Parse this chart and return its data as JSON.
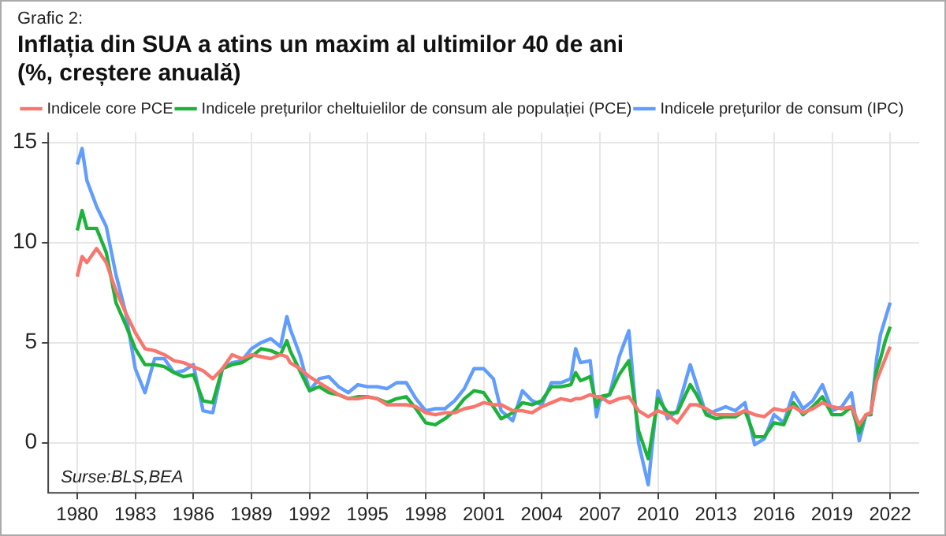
{
  "chart_data": {
    "type": "line",
    "subtitle": "Grafic 2:",
    "title": "Inflația din SUA a atins un maxim al ultimilor 40 de ani\n(%, creștere anuală)",
    "x": [
      1980.0,
      1980.25,
      1980.5,
      1981.0,
      1981.5,
      1982.0,
      1982.5,
      1983.0,
      1983.5,
      1984.0,
      1984.5,
      1985.0,
      1985.5,
      1986.0,
      1986.5,
      1987.0,
      1987.5,
      1988.0,
      1988.5,
      1989.0,
      1989.5,
      1990.0,
      1990.5,
      1990.83,
      1991.0,
      1991.5,
      1992.0,
      1992.5,
      1993.0,
      1993.5,
      1994.0,
      1994.5,
      1995.0,
      1995.5,
      1996.0,
      1996.5,
      1997.0,
      1997.5,
      1998.0,
      1998.5,
      1999.0,
      1999.5,
      2000.0,
      2000.5,
      2001.0,
      2001.5,
      2001.9,
      2002.5,
      2003.0,
      2003.5,
      2004.0,
      2004.5,
      2005.0,
      2005.5,
      2005.75,
      2006.0,
      2006.5,
      2006.83,
      2007.0,
      2007.5,
      2008.0,
      2008.5,
      2009.0,
      2009.5,
      2010.0,
      2010.5,
      2011.0,
      2011.67,
      2012.0,
      2012.5,
      2013.0,
      2013.5,
      2014.0,
      2014.5,
      2015.0,
      2015.5,
      2016.0,
      2016.5,
      2017.0,
      2017.5,
      2018.0,
      2018.5,
      2019.0,
      2019.5,
      2020.0,
      2020.4,
      2020.75,
      2021.0,
      2021.3,
      2021.5,
      2021.75,
      2022.0
    ],
    "series": [
      {
        "name": "Indicele core PCE",
        "color": "#f8766d",
        "values": [
          8.3,
          9.3,
          9.0,
          9.7,
          9.0,
          7.6,
          6.5,
          5.5,
          4.7,
          4.6,
          4.4,
          4.1,
          4.0,
          3.8,
          3.6,
          3.2,
          3.7,
          4.4,
          4.2,
          4.4,
          4.3,
          4.2,
          4.4,
          4.3,
          4.0,
          3.7,
          3.3,
          3.0,
          2.7,
          2.4,
          2.2,
          2.2,
          2.3,
          2.2,
          1.9,
          1.9,
          1.9,
          1.8,
          1.5,
          1.4,
          1.5,
          1.5,
          1.7,
          1.8,
          2.0,
          1.9,
          1.9,
          1.6,
          1.6,
          1.5,
          1.8,
          2.0,
          2.2,
          2.1,
          2.2,
          2.2,
          2.4,
          2.3,
          2.3,
          2.0,
          2.2,
          2.3,
          1.6,
          1.3,
          1.6,
          1.4,
          1.0,
          1.9,
          1.9,
          1.7,
          1.4,
          1.4,
          1.4,
          1.6,
          1.4,
          1.3,
          1.7,
          1.6,
          1.8,
          1.5,
          1.7,
          2.0,
          1.8,
          1.7,
          1.8,
          0.9,
          1.4,
          1.5,
          3.1,
          3.6,
          4.2,
          4.8
        ]
      },
      {
        "name": "Indicele prețurilor cheltuielilor de consum ale populației (PCE)",
        "color": "#1db33b",
        "values": [
          10.6,
          11.6,
          10.7,
          10.7,
          9.5,
          7.0,
          5.9,
          4.7,
          3.9,
          3.9,
          3.8,
          3.5,
          3.3,
          3.4,
          2.1,
          2.0,
          3.7,
          3.9,
          4.0,
          4.3,
          4.7,
          4.6,
          4.4,
          5.1,
          4.6,
          3.6,
          2.6,
          2.8,
          2.5,
          2.4,
          2.2,
          2.3,
          2.3,
          2.2,
          2.0,
          2.2,
          2.3,
          1.7,
          1.0,
          0.9,
          1.2,
          1.6,
          2.2,
          2.6,
          2.5,
          1.8,
          1.2,
          1.5,
          2.0,
          1.9,
          2.1,
          2.8,
          2.8,
          2.9,
          3.5,
          3.1,
          3.3,
          1.8,
          2.3,
          2.4,
          3.4,
          4.1,
          0.6,
          -0.8,
          2.2,
          1.5,
          1.5,
          2.9,
          2.4,
          1.4,
          1.2,
          1.3,
          1.3,
          1.6,
          0.3,
          0.3,
          1.0,
          0.9,
          2.0,
          1.4,
          1.8,
          2.3,
          1.4,
          1.4,
          1.8,
          0.5,
          1.4,
          1.4,
          3.6,
          4.2,
          5.1,
          5.8
        ]
      },
      {
        "name": "Indicele prețurilor de consum (IPC)",
        "color": "#619cff",
        "values": [
          13.9,
          14.7,
          13.1,
          11.8,
          10.8,
          8.4,
          6.5,
          3.7,
          2.5,
          4.2,
          4.2,
          3.5,
          3.6,
          3.9,
          1.6,
          1.5,
          3.7,
          4.0,
          4.1,
          4.7,
          5.0,
          5.2,
          4.8,
          6.3,
          5.7,
          4.4,
          2.6,
          3.2,
          3.3,
          2.8,
          2.5,
          2.9,
          2.8,
          2.8,
          2.7,
          3.0,
          3.0,
          2.2,
          1.6,
          1.7,
          1.7,
          2.1,
          2.7,
          3.7,
          3.7,
          3.2,
          1.6,
          1.1,
          2.6,
          2.1,
          1.9,
          3.0,
          3.0,
          3.2,
          4.7,
          4.0,
          4.1,
          1.3,
          2.1,
          2.4,
          4.3,
          5.6,
          0.0,
          -2.1,
          2.6,
          1.2,
          1.6,
          3.9,
          2.9,
          1.4,
          1.6,
          1.8,
          1.6,
          2.0,
          -0.1,
          0.2,
          1.4,
          1.0,
          2.5,
          1.7,
          2.1,
          2.9,
          1.6,
          1.8,
          2.5,
          0.1,
          1.4,
          1.4,
          4.2,
          5.4,
          6.2,
          7.0
        ]
      }
    ],
    "xlim": [
      1978.5,
      2023.5
    ],
    "xticks": [
      1980,
      1983,
      1986,
      1989,
      1992,
      1995,
      1998,
      2001,
      2004,
      2007,
      2010,
      2013,
      2016,
      2019,
      2022
    ],
    "ylim": [
      -2.5,
      15.5
    ],
    "yticks": [
      0,
      5,
      10,
      15
    ],
    "grid": true,
    "legend": "top",
    "line_style": "solid",
    "marker": "none",
    "annotations": [
      "Surse:BLS,BEA"
    ]
  }
}
